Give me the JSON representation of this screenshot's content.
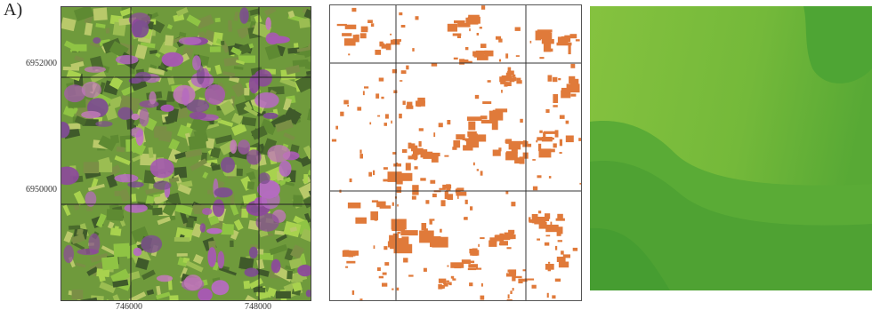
{
  "panel": {
    "label": "A)"
  },
  "axes": {
    "y_ticks": [
      "6952000",
      "6950000"
    ],
    "x_ticks": [
      "746000",
      "748000"
    ]
  },
  "colors": {
    "satellite_green": "#7bbf3a",
    "satellite_magenta": "#a65ab0",
    "classified_patch": "#e07a3a",
    "surface_light": "#7dbd3c",
    "surface_dark": "#3f9b32"
  }
}
